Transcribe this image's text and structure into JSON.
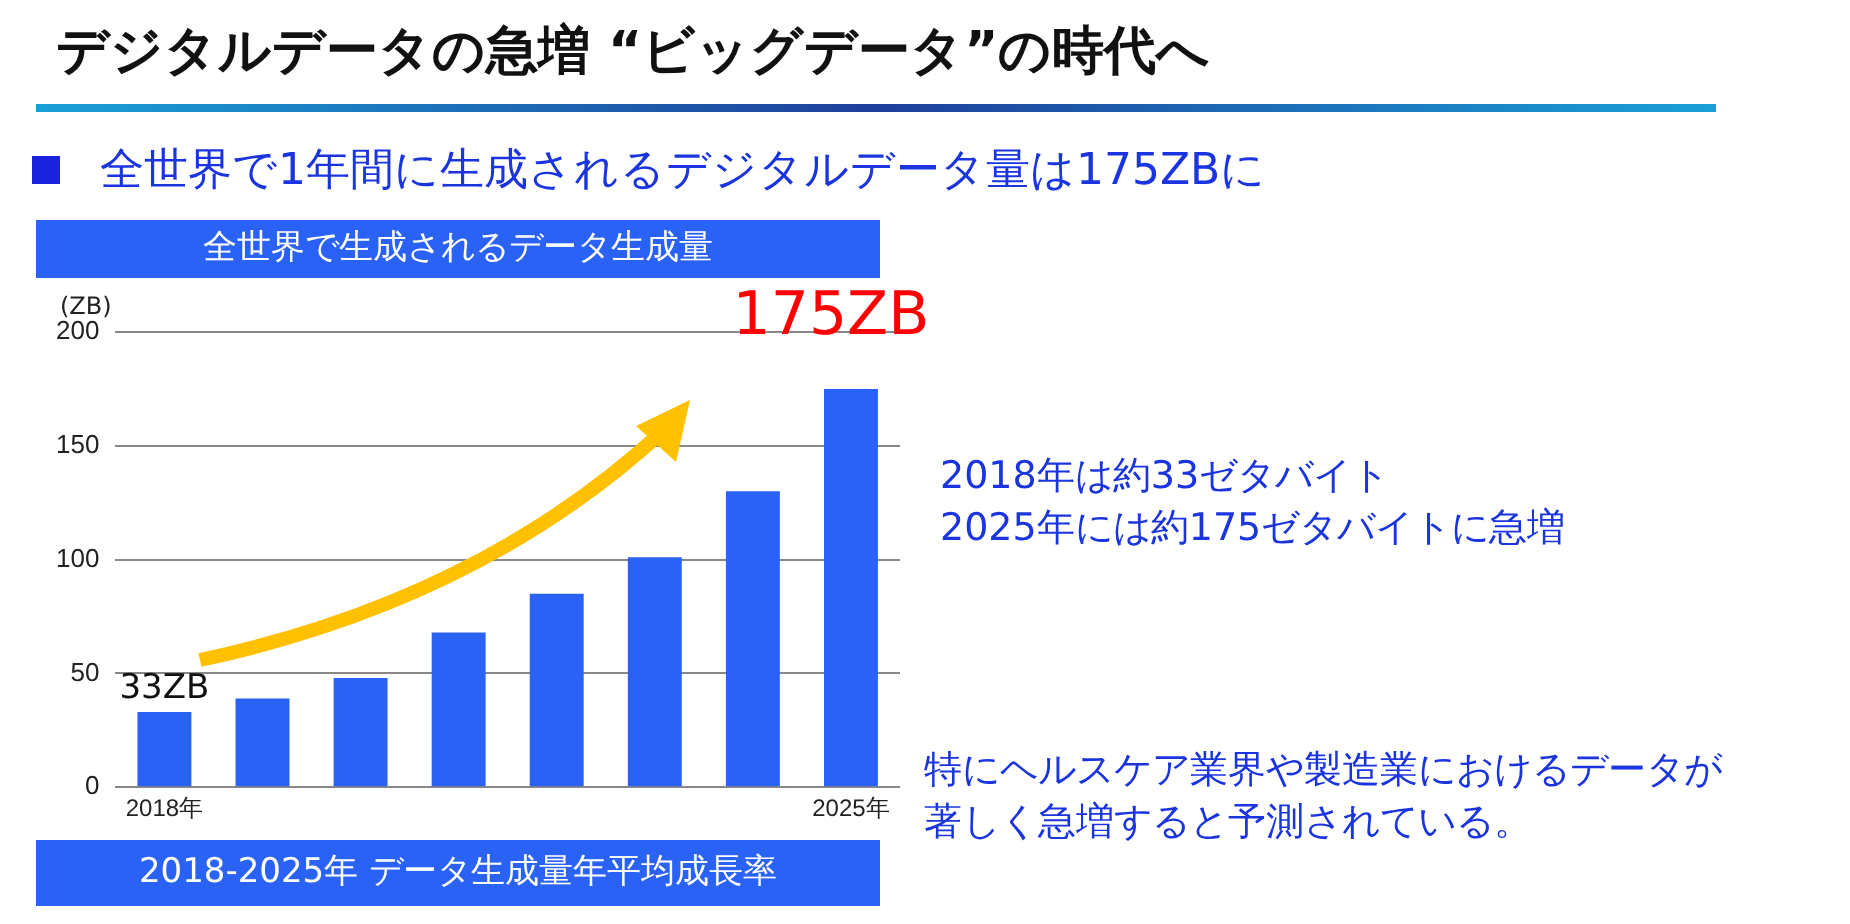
{
  "chart_data": {
    "type": "bar",
    "title": "デジタルデータの急増 “ビッグデータ”の時代へ",
    "subtitle": "全世界で1年間に生成されるデジタルデータ量は175ZBに",
    "ylabel": "(ZB)",
    "categories": [
      "2018年",
      null,
      null,
      null,
      null,
      null,
      null,
      "2025年"
    ],
    "values": [
      33,
      39,
      48,
      68,
      85,
      101,
      130,
      175
    ],
    "value_labels": [
      "33ZB",
      null,
      null,
      null,
      null,
      null,
      null,
      "175ZB"
    ],
    "color": "#2962f5",
    "ylim": [
      0,
      200
    ],
    "yticks": [
      0,
      50,
      100,
      150,
      200
    ],
    "grid": "y",
    "legend": false,
    "annotations": [
      "全世界で生成されるデータ生成量",
      "2018-2025年 データ生成量年平均成長率",
      "2018年は約33ゼタバイト\n2025年には約175ゼタバイトに急増",
      "特にヘルスケア業界や製造業におけるデータが著しく急増すると予測されている。"
    ]
  }
}
